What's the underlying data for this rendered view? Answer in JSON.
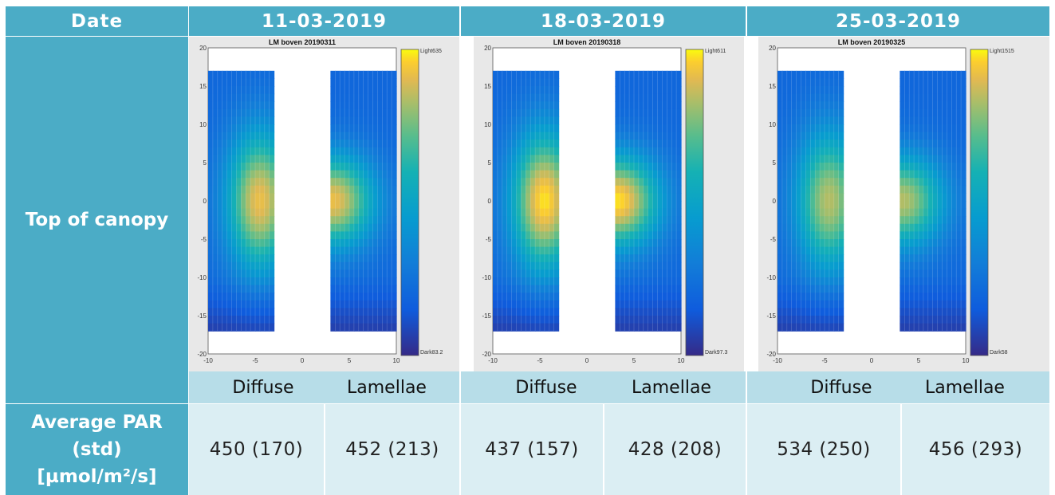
{
  "header": {
    "date_label": "Date",
    "dates": [
      "11-03-2019",
      "18-03-2019",
      "25-03-2019"
    ]
  },
  "rows": {
    "canopy_label": "Top of canopy",
    "par_label_lines": [
      "Average PAR",
      "(std)",
      "[µmol/m²/s]"
    ]
  },
  "panels": [
    {
      "plot_title": "LM boven 20190311",
      "cb_top": "Light635",
      "cb_bottom": "Dark83.2"
    },
    {
      "plot_title": "LM boven 20190318",
      "cb_top": "Light611",
      "cb_bottom": "Dark97.3"
    },
    {
      "plot_title": "LM boven 20190325",
      "cb_top": "Light1515",
      "cb_bottom": "Dark58"
    }
  ],
  "axis": {
    "y_ticks": [
      "20",
      "15",
      "10",
      "5",
      "0",
      "-5",
      "-10",
      "-15",
      "-20"
    ],
    "x_ticks": [
      "-10",
      "-5",
      "0",
      "5",
      "10"
    ]
  },
  "captions": {
    "diffuse": "Diffuse",
    "lamellae": "Lamellae"
  },
  "values": [
    [
      "450 (170)",
      "452 (213)"
    ],
    [
      "437 (157)",
      "428 (208)"
    ],
    [
      "534 (250)",
      "456 (293)"
    ]
  ],
  "colors": {
    "header_bg": "#4bacc6",
    "caption_bg": "#b7dde8",
    "value_bg": "#dbeef3",
    "heat_low": "#2b3a9a",
    "heat_mid": "#1fa0c8",
    "heat_high": "#f6d22a"
  }
}
